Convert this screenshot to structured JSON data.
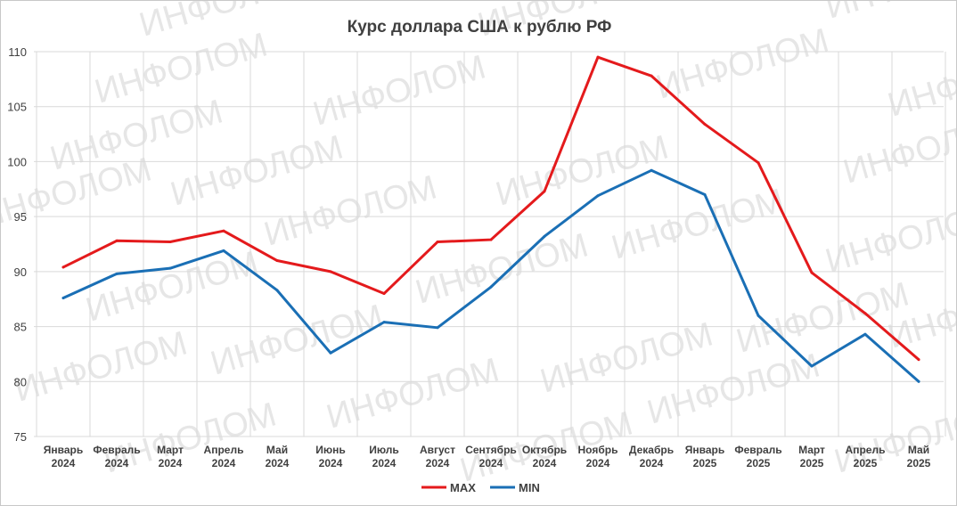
{
  "watermark": "ИНФОЛОМ",
  "chart_data": {
    "type": "line",
    "title": "Курс доллара США к рублю РФ",
    "xlabel": "",
    "ylabel": "",
    "ylim": [
      75,
      110
    ],
    "yticks": [
      75,
      80,
      85,
      90,
      95,
      100,
      105,
      110
    ],
    "grid": true,
    "legend_position": "bottom-center",
    "categories": [
      [
        "Январь",
        "2024"
      ],
      [
        "Февраль",
        "2024"
      ],
      [
        "Март",
        "2024"
      ],
      [
        "Апрель",
        "2024"
      ],
      [
        "Май",
        "2024"
      ],
      [
        "Июнь",
        "2024"
      ],
      [
        "Июль",
        "2024"
      ],
      [
        "Август",
        "2024"
      ],
      [
        "Сентябрь",
        "2024"
      ],
      [
        "Октябрь",
        "2024"
      ],
      [
        "Ноябрь",
        "2024"
      ],
      [
        "Декабрь",
        "2024"
      ],
      [
        "Январь",
        "2025"
      ],
      [
        "Февраль",
        "2025"
      ],
      [
        "Март",
        "2025"
      ],
      [
        "Апрель",
        "2025"
      ],
      [
        "Май",
        "2025"
      ]
    ],
    "series": [
      {
        "name": "MAX",
        "color": "#e41a1c",
        "values": [
          90.4,
          92.8,
          92.7,
          93.7,
          91.0,
          90.0,
          88.0,
          92.7,
          92.9,
          97.3,
          109.5,
          107.8,
          103.4,
          99.9,
          89.9,
          86.2,
          82.0
        ]
      },
      {
        "name": "MIN",
        "color": "#1a6fb5",
        "values": [
          87.6,
          89.8,
          90.3,
          91.9,
          88.3,
          82.6,
          85.4,
          84.9,
          88.6,
          93.2,
          96.9,
          99.2,
          97.0,
          86.0,
          81.4,
          84.3,
          80.0
        ]
      }
    ]
  }
}
